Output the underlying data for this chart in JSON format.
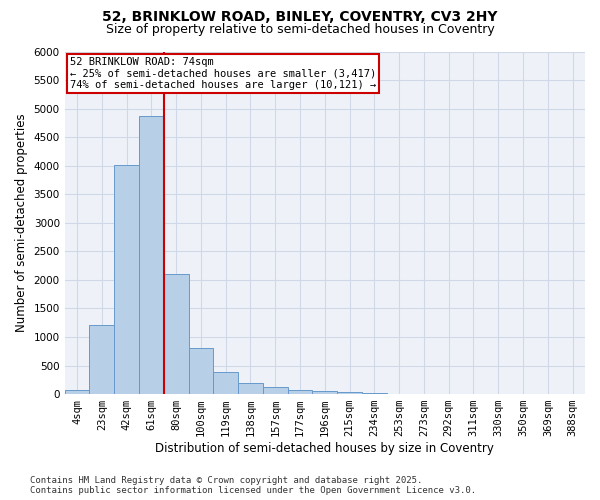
{
  "title_line1": "52, BRINKLOW ROAD, BINLEY, COVENTRY, CV3 2HY",
  "title_line2": "Size of property relative to semi-detached houses in Coventry",
  "xlabel": "Distribution of semi-detached houses by size in Coventry",
  "ylabel": "Number of semi-detached properties",
  "categories": [
    "4sqm",
    "23sqm",
    "42sqm",
    "61sqm",
    "80sqm",
    "100sqm",
    "119sqm",
    "138sqm",
    "157sqm",
    "177sqm",
    "196sqm",
    "215sqm",
    "234sqm",
    "253sqm",
    "273sqm",
    "292sqm",
    "311sqm",
    "330sqm",
    "350sqm",
    "369sqm",
    "388sqm"
  ],
  "values": [
    70,
    1210,
    4010,
    4870,
    2100,
    800,
    390,
    200,
    130,
    80,
    55,
    35,
    20,
    10,
    5,
    3,
    2,
    1,
    1,
    0,
    0
  ],
  "bar_color": "#b8cfe8",
  "bar_edgecolor": "#6699cc",
  "grid_color": "#d0d8e8",
  "background_color": "#eef2f8",
  "annotation_text_line1": "52 BRINKLOW ROAD: 74sqm",
  "annotation_text_line2": "← 25% of semi-detached houses are smaller (3,417)",
  "annotation_text_line3": "74% of semi-detached houses are larger (10,121) →",
  "annotation_box_color": "#ffffff",
  "annotation_box_edgecolor": "#cc0000",
  "vline_color": "#cc0000",
  "footer_line1": "Contains HM Land Registry data © Crown copyright and database right 2025.",
  "footer_line2": "Contains public sector information licensed under the Open Government Licence v3.0.",
  "ylim": [
    0,
    6000
  ],
  "yticks": [
    0,
    500,
    1000,
    1500,
    2000,
    2500,
    3000,
    3500,
    4000,
    4500,
    5000,
    5500,
    6000
  ],
  "title_fontsize": 10,
  "subtitle_fontsize": 9,
  "axis_label_fontsize": 8.5,
  "tick_fontsize": 7.5,
  "annotation_fontsize": 7.5,
  "footer_fontsize": 6.5
}
